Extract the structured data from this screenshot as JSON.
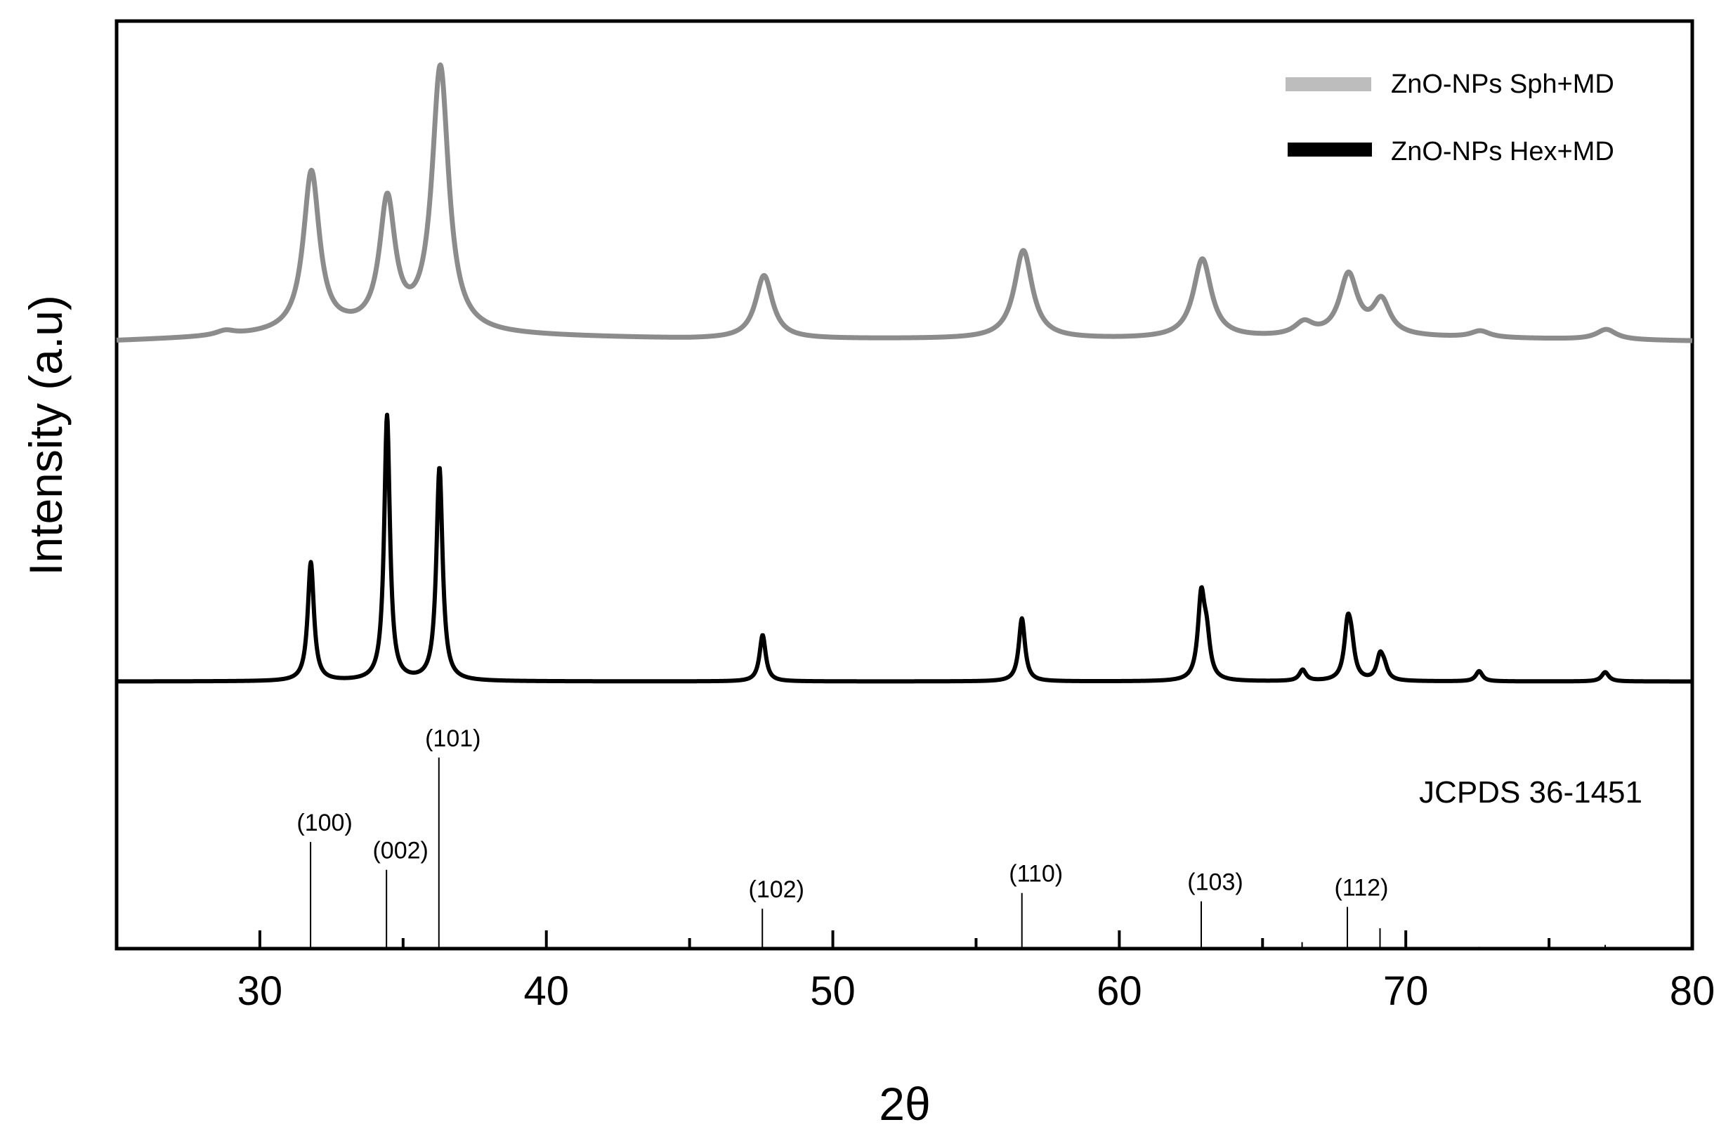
{
  "chart_data": {
    "type": "line",
    "title": "",
    "xlabel": "2θ",
    "ylabel": "Intensity (a.u)",
    "xlim": [
      25,
      80
    ],
    "xticks": [
      30,
      40,
      50,
      60,
      70,
      80
    ],
    "ylim": [
      0,
      1
    ],
    "grid": false,
    "legend_position": "top-right",
    "series": [
      {
        "name": "ZnO-NPs Sph+MD",
        "color": "#8c8c8c",
        "legend_color": "#bdbdbd",
        "baseline": 0.655,
        "background": [
          [
            25,
            0
          ],
          [
            29,
            0.004
          ],
          [
            33,
            0.01
          ],
          [
            38,
            0.006
          ],
          [
            45,
            0.002
          ],
          [
            60,
            0.002
          ],
          [
            70,
            0.004
          ],
          [
            80,
            0
          ]
        ],
        "peaks": [
          {
            "x": 28.8,
            "h": 0.005,
            "w": 0.4
          },
          {
            "x": 31.8,
            "h": 0.172,
            "w": 0.34
          },
          {
            "x": 34.45,
            "h": 0.138,
            "w": 0.33
          },
          {
            "x": 36.3,
            "h": 0.285,
            "w": 0.35
          },
          {
            "x": 47.6,
            "h": 0.068,
            "w": 0.36
          },
          {
            "x": 56.65,
            "h": 0.095,
            "w": 0.38
          },
          {
            "x": 62.9,
            "h": 0.085,
            "w": 0.38
          },
          {
            "x": 66.45,
            "h": 0.014,
            "w": 0.4
          },
          {
            "x": 68.0,
            "h": 0.066,
            "w": 0.38
          },
          {
            "x": 69.15,
            "h": 0.037,
            "w": 0.36
          },
          {
            "x": 72.6,
            "h": 0.007,
            "w": 0.4
          },
          {
            "x": 77.0,
            "h": 0.011,
            "w": 0.42
          }
        ]
      },
      {
        "name": "ZnO-NPs Hex+MD",
        "color": "#000000",
        "legend_color": "#000000",
        "baseline": 0.288,
        "background": [
          [
            25,
            0
          ],
          [
            80,
            0
          ]
        ],
        "peaks": [
          {
            "x": 31.78,
            "h": 0.128,
            "w": 0.13
          },
          {
            "x": 34.44,
            "h": 0.286,
            "w": 0.12
          },
          {
            "x": 36.27,
            "h": 0.23,
            "w": 0.13
          },
          {
            "x": 47.55,
            "h": 0.05,
            "w": 0.13
          },
          {
            "x": 56.6,
            "h": 0.068,
            "w": 0.13
          },
          {
            "x": 62.86,
            "h": 0.087,
            "w": 0.14
          },
          {
            "x": 63.05,
            "h": 0.04,
            "w": 0.14
          },
          {
            "x": 66.4,
            "h": 0.012,
            "w": 0.14
          },
          {
            "x": 67.97,
            "h": 0.055,
            "w": 0.14
          },
          {
            "x": 68.1,
            "h": 0.03,
            "w": 0.14
          },
          {
            "x": 69.1,
            "h": 0.025,
            "w": 0.14
          },
          {
            "x": 69.25,
            "h": 0.012,
            "w": 0.14
          },
          {
            "x": 72.56,
            "h": 0.011,
            "w": 0.14
          },
          {
            "x": 76.96,
            "h": 0.01,
            "w": 0.15
          }
        ]
      }
    ],
    "reference": {
      "label": "JCPDS 36-1451",
      "lines": [
        {
          "x": 31.77,
          "h": 0.115,
          "label": "(100)"
        },
        {
          "x": 34.42,
          "h": 0.085,
          "label": "(002)"
        },
        {
          "x": 36.25,
          "h": 0.206,
          "label": "(101)"
        },
        {
          "x": 47.54,
          "h": 0.043,
          "label": "(102)"
        },
        {
          "x": 56.6,
          "h": 0.06,
          "label": "(110)"
        },
        {
          "x": 62.86,
          "h": 0.051,
          "label": "(103)"
        },
        {
          "x": 66.38,
          "h": 0.007,
          "label": ""
        },
        {
          "x": 67.96,
          "h": 0.045,
          "label": "(112)"
        },
        {
          "x": 69.1,
          "h": 0.022,
          "label": ""
        },
        {
          "x": 72.56,
          "h": 0.002,
          "label": ""
        },
        {
          "x": 76.96,
          "h": 0.004,
          "label": ""
        }
      ]
    }
  }
}
